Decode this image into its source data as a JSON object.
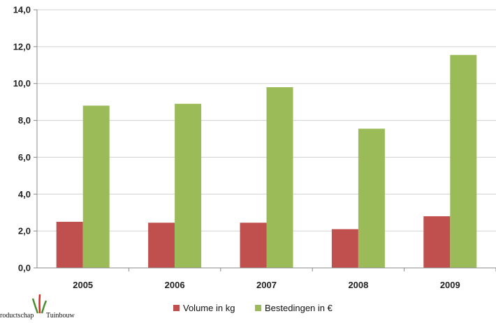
{
  "chart_data": {
    "type": "bar",
    "title": "",
    "xlabel": "",
    "ylabel": "",
    "categories": [
      "2005",
      "2006",
      "2007",
      "2008",
      "2009"
    ],
    "series": [
      {
        "name": "Volume in kg",
        "color": "#c0504d",
        "values": [
          2.5,
          2.45,
          2.45,
          2.1,
          2.8
        ]
      },
      {
        "name": "Bestedingen in €",
        "color": "#9bbb59",
        "values": [
          8.8,
          8.9,
          9.8,
          7.55,
          11.55
        ]
      }
    ],
    "ylim": [
      0,
      14
    ],
    "yticks": [
      0,
      2,
      4,
      6,
      8,
      10,
      12,
      14
    ],
    "ytick_labels": [
      "0,0",
      "2,0",
      "4,0",
      "6,0",
      "8,0",
      "10,0",
      "12,0",
      "14,0"
    ],
    "grid": true,
    "legend_position": "bottom"
  },
  "logo": {
    "text_left": "roductschap",
    "text_right": "Tuinbouw"
  }
}
